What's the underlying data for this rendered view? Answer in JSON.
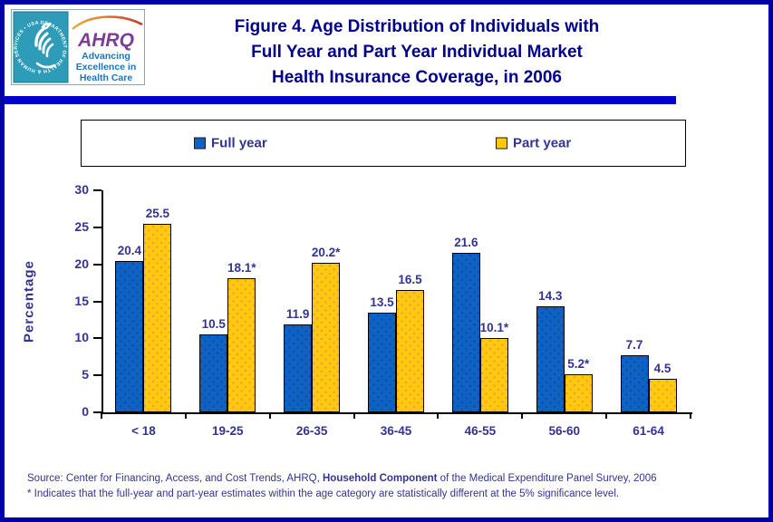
{
  "header": {
    "title_lines": [
      "Figure 4. Age Distribution of Individuals with",
      "Full Year and Part Year Individual Market",
      "Health Insurance Coverage, in 2006"
    ],
    "logo": {
      "hhs_circular_text": "DEPARTMENT OF HEALTH & HUMAN SERVICES • USA",
      "ahrq_acronym": "AHRQ",
      "tagline_lines": [
        "Advancing",
        "Excellence in",
        "Health Care"
      ]
    }
  },
  "legend": {
    "items": [
      {
        "label": "Full year",
        "color": "#0F62C4"
      },
      {
        "label": "Part year",
        "color": "#FFC90E"
      }
    ]
  },
  "chart_data": {
    "type": "bar",
    "title": "Figure 4. Age Distribution of Individuals with Full Year and Part Year Individual Market Health Insurance Coverage, in 2006",
    "categories": [
      "< 18",
      "19-25",
      "26-35",
      "36-45",
      "46-55",
      "56-60",
      "61-64"
    ],
    "series": [
      {
        "name": "Full year",
        "color": "#0F62C4",
        "dot_color": "#0B4FA0",
        "values": [
          20.4,
          10.5,
          11.9,
          13.5,
          21.6,
          14.3,
          7.7
        ],
        "labels": [
          "20.4",
          "10.5",
          "11.9",
          "13.5",
          "21.6",
          "14.3",
          "7.7"
        ]
      },
      {
        "name": "Part year",
        "color": "#FFC90E",
        "dot_color": "#EE9D3C",
        "values": [
          25.5,
          18.1,
          20.2,
          16.5,
          10.1,
          5.2,
          4.5
        ],
        "labels": [
          "25.5",
          "18.1*",
          "20.2*",
          "16.5",
          "10.1*",
          "5.2*",
          "4.5"
        ]
      }
    ],
    "xlabel": "",
    "ylabel": "Percentage",
    "ylim": [
      0,
      30
    ],
    "yticks": [
      0,
      5,
      10,
      15,
      20,
      25,
      30
    ],
    "grid": false,
    "legend_position": "top"
  },
  "footer": {
    "source_prefix": "Source: Center for Financing, Access, and Cost Trends, AHRQ, ",
    "source_bold": "Household Component",
    "source_suffix": " of the Medical Expenditure Panel Survey, 2006",
    "footnote": "* Indicates that the full-year and part-year estimates within the age category are statistically different at the 5% significance level."
  },
  "colors": {
    "page_border": "#0000A8",
    "divider": "#0101CC",
    "title_text": "#00008C",
    "chart_text": "#333392",
    "source_text": "#333392",
    "axis": "#000000",
    "logo_teal": "#2E9CB8",
    "ahrq_purple": "#7B3E98",
    "ahrq_tagline_blue": "#1B75BC"
  }
}
